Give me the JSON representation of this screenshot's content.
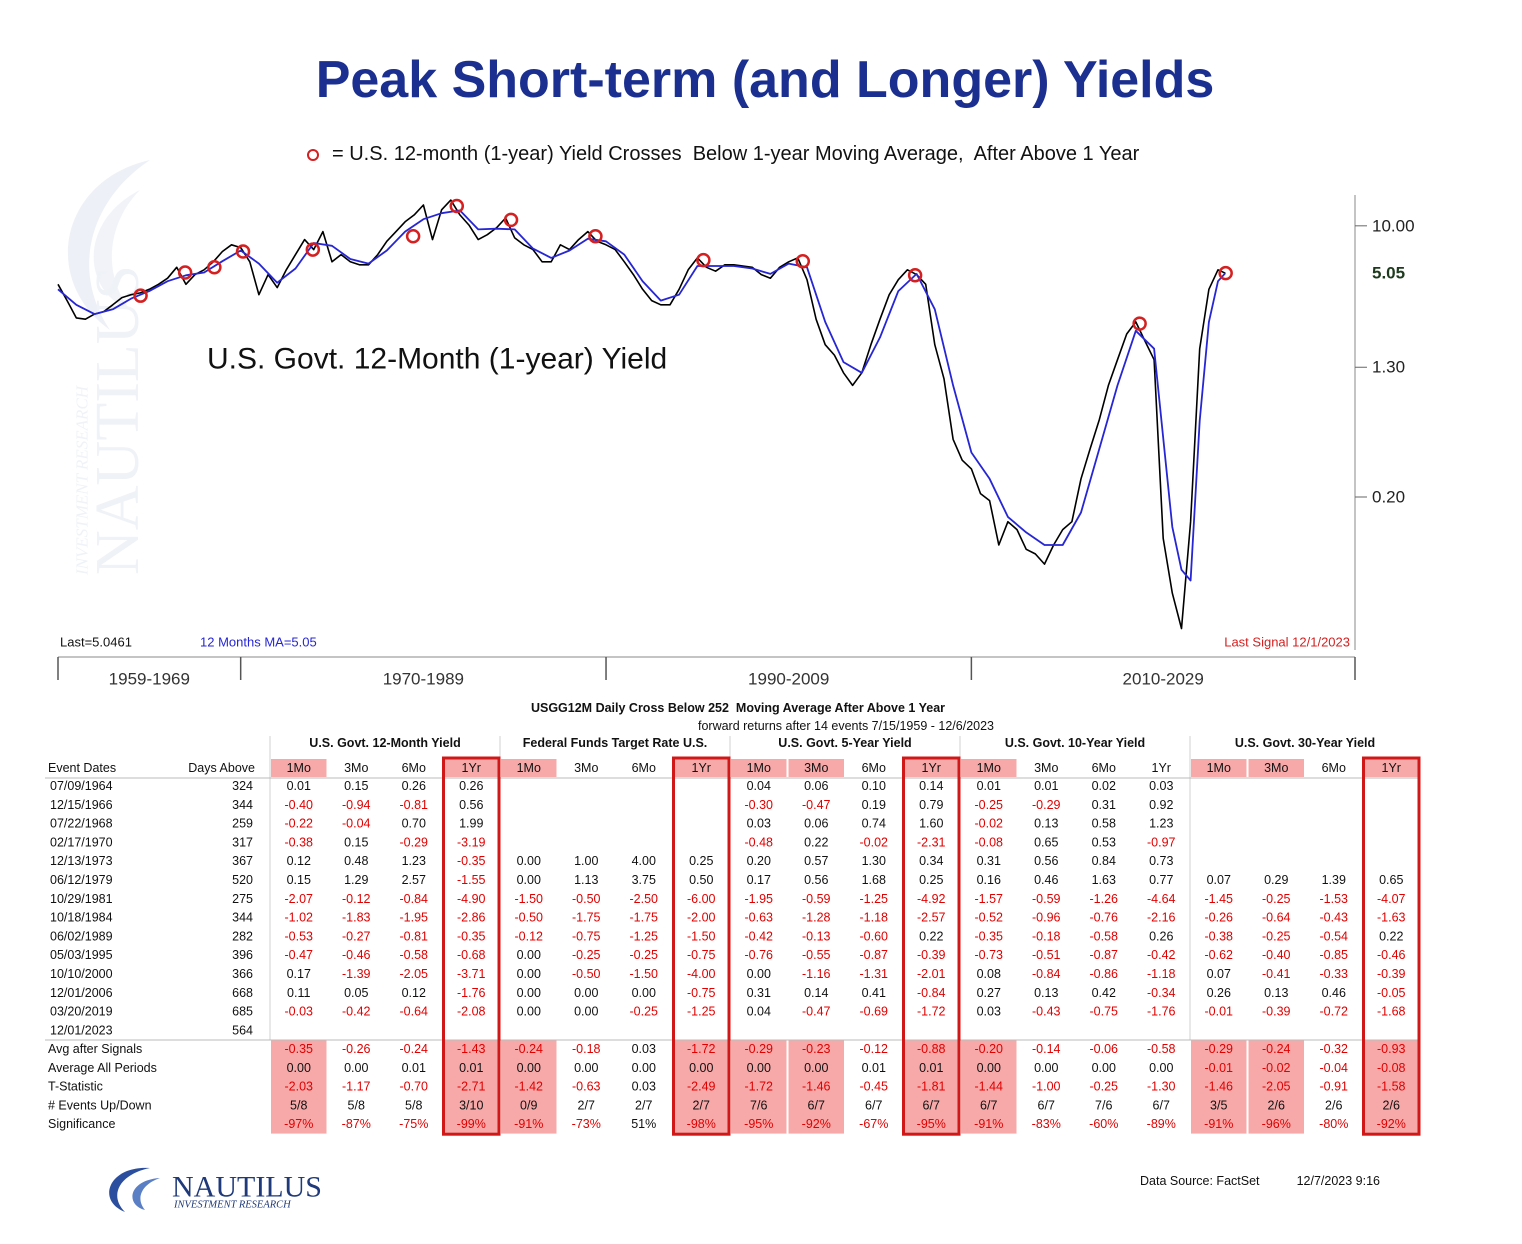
{
  "title": "Peak Short-term (and Longer) Yields",
  "chart_data": {
    "type": "line",
    "ylog": true,
    "ylim": [
      0.022,
      15.6
    ],
    "yticks": [
      {
        "value": 10,
        "label": "10.00"
      },
      {
        "value": 1.3,
        "label": "1.30"
      },
      {
        "value": 0.2,
        "label": "0.20"
      }
    ],
    "xlim": [
      1960,
      2031
    ],
    "xticks": [
      1960,
      1970,
      1990,
      2010,
      2031
    ],
    "period_labels": [
      "1959-1969",
      "1970-1989",
      "1990-2009",
      "2010-2029"
    ],
    "last_value": 5.05,
    "notes": {
      "last": "Last=5.0461",
      "ma": "12 Months MA=5.05",
      "signal": "Last Signal 12/1/2023"
    },
    "series": [
      {
        "name": "U.S. Govt. 12-Month (1-year) Yield",
        "color": "#000000",
        "x": [
          1960,
          1960.5,
          1961,
          1961.5,
          1962,
          1962.5,
          1963,
          1963.5,
          1964,
          1964.5,
          1965,
          1965.5,
          1966,
          1966.5,
          1967,
          1967.5,
          1968,
          1968.5,
          1969,
          1969.5,
          1970,
          1970.5,
          1971,
          1971.5,
          1972,
          1972.5,
          1973,
          1973.5,
          1974,
          1974.5,
          1975,
          1975.5,
          1976,
          1976.5,
          1977,
          1977.5,
          1978,
          1978.5,
          1979,
          1979.5,
          1980,
          1980.5,
          1981,
          1981.5,
          1982,
          1982.5,
          1983,
          1983.5,
          1984,
          1984.5,
          1985,
          1985.5,
          1986,
          1986.5,
          1987,
          1987.5,
          1988,
          1988.5,
          1989,
          1989.5,
          1990,
          1990.5,
          1991,
          1991.5,
          1992,
          1992.5,
          1993,
          1993.5,
          1994,
          1994.5,
          1995,
          1995.5,
          1996,
          1996.5,
          1997,
          1997.5,
          1998,
          1998.5,
          1999,
          1999.5,
          2000,
          2000.5,
          2001,
          2001.5,
          2002,
          2002.5,
          2003,
          2003.5,
          2004,
          2004.5,
          2005,
          2005.5,
          2006,
          2006.5,
          2007,
          2007.5,
          2008,
          2008.5,
          2009,
          2009.5,
          2010,
          2010.5,
          2011,
          2011.5,
          2012,
          2012.5,
          2013,
          2013.5,
          2014,
          2014.5,
          2015,
          2015.5,
          2016,
          2016.5,
          2017,
          2017.5,
          2018,
          2018.5,
          2019,
          2019.5,
          2020,
          2020.5,
          2021,
          2021.5,
          2022,
          2022.5,
          2023,
          2023.5,
          2023.9
        ],
        "values": [
          4.3,
          3.4,
          2.65,
          2.6,
          2.8,
          2.9,
          3.2,
          3.55,
          3.7,
          3.8,
          4.0,
          4.3,
          4.7,
          5.5,
          4.3,
          4.95,
          5.3,
          5.95,
          6.9,
          7.6,
          7.3,
          5.95,
          3.7,
          4.95,
          4.1,
          5.3,
          6.6,
          8.2,
          7.1,
          9.2,
          5.95,
          6.6,
          5.95,
          5.7,
          5.7,
          6.6,
          8.0,
          9.2,
          10.6,
          11.7,
          13.5,
          8.2,
          12.6,
          14.5,
          11.7,
          10.1,
          8.2,
          8.8,
          9.7,
          11.2,
          8.4,
          7.6,
          7.1,
          5.95,
          5.95,
          7.6,
          7.1,
          8.2,
          9.2,
          8.0,
          7.6,
          7.1,
          5.95,
          4.95,
          4.0,
          3.4,
          3.2,
          3.2,
          4.0,
          5.3,
          6.3,
          5.5,
          5.2,
          5.7,
          5.7,
          5.6,
          5.5,
          4.95,
          4.7,
          5.5,
          5.95,
          6.3,
          4.6,
          2.6,
          1.8,
          1.55,
          1.2,
          1.0,
          1.2,
          1.8,
          2.6,
          3.7,
          4.6,
          5.3,
          4.95,
          4.3,
          1.8,
          1.1,
          0.46,
          0.34,
          0.3,
          0.21,
          0.19,
          0.1,
          0.14,
          0.125,
          0.094,
          0.088,
          0.076,
          0.1,
          0.125,
          0.14,
          0.26,
          0.4,
          0.61,
          1.0,
          1.45,
          2.1,
          2.5,
          1.9,
          1.45,
          0.11,
          0.05,
          0.03,
          0.14,
          1.7,
          4.0,
          5.3,
          5.05
        ]
      },
      {
        "color": "#2626d4",
        "x": [
          1960,
          1961,
          1962,
          1963,
          1964,
          1965,
          1966,
          1967,
          1968,
          1969,
          1970,
          1971,
          1972,
          1973,
          1974,
          1975,
          1976,
          1977,
          1978,
          1979,
          1980,
          1981,
          1982,
          1983,
          1984,
          1985,
          1986,
          1987,
          1988,
          1989,
          1990,
          1991,
          1992,
          1993,
          1994,
          1995,
          1996,
          1997,
          1998,
          1999,
          2000,
          2001,
          2002,
          2003,
          2004,
          2005,
          2006,
          2007,
          2008,
          2009,
          2010,
          2011,
          2012,
          2013,
          2014,
          2015,
          2016,
          2017,
          2018,
          2019,
          2020,
          2021,
          2021.5,
          2022,
          2022.5,
          2023,
          2023.5,
          2023.9
        ],
        "values": [
          4.0,
          3.2,
          2.8,
          3.0,
          3.5,
          3.9,
          4.5,
          4.9,
          5.1,
          6.0,
          7.0,
          5.8,
          4.4,
          5.4,
          7.8,
          7.5,
          6.2,
          5.8,
          7.0,
          9.2,
          11.0,
          12.0,
          12.5,
          9.5,
          9.6,
          9.5,
          7.2,
          6.3,
          7.0,
          8.3,
          8.0,
          6.6,
          4.5,
          3.4,
          3.7,
          5.6,
          5.6,
          5.6,
          5.4,
          5.0,
          5.8,
          5.5,
          2.5,
          1.4,
          1.2,
          2.0,
          3.9,
          5.0,
          3.0,
          1.0,
          0.38,
          0.26,
          0.15,
          0.12,
          0.1,
          0.1,
          0.16,
          0.4,
          1.0,
          2.2,
          1.7,
          0.13,
          0.07,
          0.06,
          0.6,
          2.5,
          4.5,
          5.05
        ]
      },
      {
        "name": "= U.S. 12-month (1-year) Yield Crosses  Below 1-year Moving Average,  After Above 1 Year",
        "color": "#d42020",
        "marker": "circle",
        "x": [
          1964.52,
          1966.96,
          1968.56,
          1970.13,
          1973.95,
          1979.44,
          1981.83,
          1984.8,
          1989.42,
          1995.33,
          2000.77,
          2006.92,
          2019.21,
          2023.92
        ],
        "values": [
          3.65,
          5.1,
          5.5,
          6.9,
          7.1,
          8.6,
          13.3,
          10.9,
          8.6,
          6.1,
          6.0,
          4.9,
          2.44,
          5.05
        ]
      }
    ]
  },
  "table": {
    "title": "USGG12M Daily Cross Below 252  Moving Average After Above 1 Year",
    "subtitle": "forward returns after 14 events 7/15/1959 - 12/6/2023",
    "row_headers": [
      "Event Dates",
      "Days Above"
    ],
    "groups": [
      "U.S. Govt. 12-Month Yield",
      "Federal Funds Target Rate U.S.",
      "U.S. Govt. 5-Year Yield",
      "U.S. Govt. 10-Year Yield",
      "U.S. Govt. 30-Year Yield"
    ],
    "columns": [
      "1Mo",
      "3Mo",
      "6Mo",
      "1Yr"
    ],
    "highlight": [
      true,
      false,
      false,
      true,
      true,
      false,
      false,
      true,
      true,
      true,
      false,
      true,
      true,
      false,
      false,
      false,
      true,
      true,
      false,
      true
    ],
    "boxed": [
      false,
      false,
      false,
      true,
      false,
      false,
      false,
      true,
      false,
      false,
      false,
      true,
      false,
      false,
      false,
      false,
      false,
      false,
      false,
      true
    ],
    "rows": [
      {
        "date": "07/09/1964",
        "days": 324,
        "values": [
          "0.01",
          "0.15",
          "0.26",
          "0.26",
          null,
          null,
          null,
          null,
          "0.04",
          "0.06",
          "0.10",
          "0.14",
          "0.01",
          "0.01",
          "0.02",
          "0.03",
          null,
          null,
          null,
          null
        ]
      },
      {
        "date": "12/15/1966",
        "days": 344,
        "values": [
          "-0.40",
          "-0.94",
          "-0.81",
          "0.56",
          null,
          null,
          null,
          null,
          "-0.30",
          "-0.47",
          "0.19",
          "0.79",
          "-0.25",
          "-0.29",
          "0.31",
          "0.92",
          null,
          null,
          null,
          null
        ]
      },
      {
        "date": "07/22/1968",
        "days": 259,
        "values": [
          "-0.22",
          "-0.04",
          "0.70",
          "1.99",
          null,
          null,
          null,
          null,
          "0.03",
          "0.06",
          "0.74",
          "1.60",
          "-0.02",
          "0.13",
          "0.58",
          "1.23",
          null,
          null,
          null,
          null
        ]
      },
      {
        "date": "02/17/1970",
        "days": 317,
        "values": [
          "-0.38",
          "0.15",
          "-0.29",
          "-3.19",
          null,
          null,
          null,
          null,
          "-0.48",
          "0.22",
          "-0.02",
          "-2.31",
          "-0.08",
          "0.65",
          "0.53",
          "-0.97",
          null,
          null,
          null,
          null
        ]
      },
      {
        "date": "12/13/1973",
        "days": 367,
        "values": [
          "0.12",
          "0.48",
          "1.23",
          "-0.35",
          "0.00",
          "1.00",
          "4.00",
          "0.25",
          "0.20",
          "0.57",
          "1.30",
          "0.34",
          "0.31",
          "0.56",
          "0.84",
          "0.73",
          null,
          null,
          null,
          null
        ]
      },
      {
        "date": "06/12/1979",
        "days": 520,
        "values": [
          "0.15",
          "1.29",
          "2.57",
          "-1.55",
          "0.00",
          "1.13",
          "3.75",
          "0.50",
          "0.17",
          "0.56",
          "1.68",
          "0.25",
          "0.16",
          "0.46",
          "1.63",
          "0.77",
          "0.07",
          "0.29",
          "1.39",
          "0.65"
        ]
      },
      {
        "date": "10/29/1981",
        "days": 275,
        "values": [
          "-2.07",
          "-0.12",
          "-0.84",
          "-4.90",
          "-1.50",
          "-0.50",
          "-2.50",
          "-6.00",
          "-1.95",
          "-0.59",
          "-1.25",
          "-4.92",
          "-1.57",
          "-0.59",
          "-1.26",
          "-4.64",
          "-1.45",
          "-0.25",
          "-1.53",
          "-4.07"
        ]
      },
      {
        "date": "10/18/1984",
        "days": 344,
        "values": [
          "-1.02",
          "-1.83",
          "-1.95",
          "-2.86",
          "-0.50",
          "-1.75",
          "-1.75",
          "-2.00",
          "-0.63",
          "-1.28",
          "-1.18",
          "-2.57",
          "-0.52",
          "-0.96",
          "-0.76",
          "-2.16",
          "-0.26",
          "-0.64",
          "-0.43",
          "-1.63"
        ]
      },
      {
        "date": "06/02/1989",
        "days": 282,
        "values": [
          "-0.53",
          "-0.27",
          "-0.81",
          "-0.35",
          "-0.12",
          "-0.75",
          "-1.25",
          "-1.50",
          "-0.42",
          "-0.13",
          "-0.60",
          "0.22",
          "-0.35",
          "-0.18",
          "-0.58",
          "0.26",
          "-0.38",
          "-0.25",
          "-0.54",
          "0.22"
        ]
      },
      {
        "date": "05/03/1995",
        "days": 396,
        "values": [
          "-0.47",
          "-0.46",
          "-0.58",
          "-0.68",
          "0.00",
          "-0.25",
          "-0.25",
          "-0.75",
          "-0.76",
          "-0.55",
          "-0.87",
          "-0.39",
          "-0.73",
          "-0.51",
          "-0.87",
          "-0.42",
          "-0.62",
          "-0.40",
          "-0.85",
          "-0.46"
        ]
      },
      {
        "date": "10/10/2000",
        "days": 366,
        "values": [
          "0.17",
          "-1.39",
          "-2.05",
          "-3.71",
          "0.00",
          "-0.50",
          "-1.50",
          "-4.00",
          "0.00",
          "-1.16",
          "-1.31",
          "-2.01",
          "0.08",
          "-0.84",
          "-0.86",
          "-1.18",
          "0.07",
          "-0.41",
          "-0.33",
          "-0.39"
        ]
      },
      {
        "date": "12/01/2006",
        "days": 668,
        "values": [
          "0.11",
          "0.05",
          "0.12",
          "-1.76",
          "0.00",
          "0.00",
          "0.00",
          "-0.75",
          "0.31",
          "0.14",
          "0.41",
          "-0.84",
          "0.27",
          "0.13",
          "0.42",
          "-0.34",
          "0.26",
          "0.13",
          "0.46",
          "-0.05"
        ]
      },
      {
        "date": "03/20/2019",
        "days": 685,
        "values": [
          "-0.03",
          "-0.42",
          "-0.64",
          "-2.08",
          "0.00",
          "0.00",
          "-0.25",
          "-1.25",
          "0.04",
          "-0.47",
          "-0.69",
          "-1.72",
          "0.03",
          "-0.43",
          "-0.75",
          "-1.76",
          "-0.01",
          "-0.39",
          "-0.72",
          "-1.68"
        ]
      },
      {
        "date": "12/01/2023",
        "days": 564,
        "values": [
          null,
          null,
          null,
          null,
          null,
          null,
          null,
          null,
          null,
          null,
          null,
          null,
          null,
          null,
          null,
          null,
          null,
          null,
          null,
          null
        ]
      }
    ],
    "summary": [
      {
        "label": "Avg after Signals",
        "values": [
          "-0.35",
          "-0.26",
          "-0.24",
          "-1.43",
          "-0.24",
          "-0.18",
          "0.03",
          "-1.72",
          "-0.29",
          "-0.23",
          "-0.12",
          "-0.88",
          "-0.20",
          "-0.14",
          "-0.06",
          "-0.58",
          "-0.29",
          "-0.24",
          "-0.32",
          "-0.93"
        ]
      },
      {
        "label": "Average All Periods",
        "values": [
          "0.00",
          "0.00",
          "0.01",
          "0.01",
          "0.00",
          "0.00",
          "0.00",
          "0.00",
          "0.00",
          "0.00",
          "0.01",
          "0.01",
          "0.00",
          "0.00",
          "0.00",
          "0.00",
          "-0.01",
          "-0.02",
          "-0.04",
          "-0.08"
        ]
      },
      {
        "label": "T-Statistic",
        "values": [
          "-2.03",
          "-1.17",
          "-0.70",
          "-2.71",
          "-1.42",
          "-0.63",
          "0.03",
          "-2.49",
          "-1.72",
          "-1.46",
          "-0.45",
          "-1.81",
          "-1.44",
          "-1.00",
          "-0.25",
          "-1.30",
          "-1.46",
          "-2.05",
          "-0.91",
          "-1.58"
        ]
      },
      {
        "label": "# Events Up/Down",
        "values": [
          "5/8",
          "5/8",
          "5/8",
          "3/10",
          "0/9",
          "2/7",
          "2/7",
          "2/7",
          "7/6",
          "6/7",
          "6/7",
          "6/7",
          "6/7",
          "6/7",
          "7/6",
          "6/7",
          "3/5",
          "2/6",
          "2/6",
          "2/6"
        ]
      },
      {
        "label": "Significance",
        "values": [
          "-97%",
          "-87%",
          "-75%",
          "-99%",
          "-91%",
          "-73%",
          "51%",
          "-98%",
          "-95%",
          "-92%",
          "-67%",
          "-95%",
          "-91%",
          "-83%",
          "-60%",
          "-89%",
          "-91%",
          "-96%",
          "-80%",
          "-92%"
        ]
      }
    ]
  },
  "footer": {
    "logo": "NAUTILUS",
    "tagline": "INVESTMENT RESEARCH",
    "source": "Data Source: FactSet",
    "timestamp": "12/7/2023 9:16"
  }
}
